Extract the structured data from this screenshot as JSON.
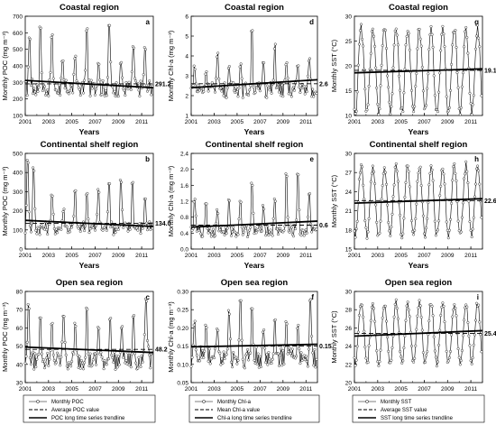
{
  "chart_data": [
    {
      "type": "line",
      "panel": "a",
      "title": "Coastal region",
      "xlabel": "Years",
      "ylabel": "Monthly POC (mg m⁻³)",
      "xlim": [
        2001,
        2012
      ],
      "ylim": [
        100,
        700
      ],
      "xticks": [
        "2001",
        "2003",
        "2005",
        "2007",
        "2009",
        "2011"
      ],
      "yticks": [
        "100",
        "200",
        "300",
        "400",
        "500",
        "600",
        "700"
      ],
      "mean_value": 291.2,
      "mean_label": "291.2",
      "trend_start": 312,
      "trend_end": 268,
      "peaks": [
        2001.4,
        2002.3,
        2003.3,
        2004.2,
        2005.3,
        2006.3,
        2007.3,
        2008.2,
        2009.2,
        2010.3,
        2011.3
      ],
      "peak_values": [
        580,
        640,
        600,
        455,
        460,
        630,
        415,
        665,
        430,
        530,
        525
      ],
      "baseline": 265,
      "amplitude_low": 50
    },
    {
      "type": "line",
      "panel": "b",
      "title": "Continental shelf region",
      "xlabel": "Years",
      "ylabel": "Monthly POC (mg m⁻³)",
      "xlim": [
        2001,
        2012
      ],
      "ylim": [
        0,
        500
      ],
      "xticks": [
        "2001",
        "2003",
        "2005",
        "2007",
        "2009",
        "2011"
      ],
      "yticks": [
        "0",
        "100",
        "200",
        "300",
        "400",
        "500"
      ],
      "mean_value": 134.0,
      "mean_label": "134.0",
      "trend_start": 150,
      "trend_end": 118,
      "peaks": [
        2001.2,
        2001.7,
        2003.3,
        2004.3,
        2005.3,
        2006.3,
        2007.3,
        2008.2,
        2009.2,
        2010.2,
        2011.3
      ],
      "peak_values": [
        470,
        430,
        300,
        210,
        320,
        305,
        320,
        345,
        365,
        360,
        270
      ],
      "baseline": 110,
      "amplitude_low": 35
    },
    {
      "type": "line",
      "panel": "c",
      "title": "Open sea region",
      "xlabel": "Years",
      "ylabel": "Monthly POC (mg m⁻³)",
      "xlim": [
        2001,
        2012
      ],
      "ylim": [
        30,
        80
      ],
      "xticks": [
        "2001",
        "2003",
        "2005",
        "2007",
        "2009",
        "2011"
      ],
      "yticks": [
        "30",
        "40",
        "50",
        "60",
        "70",
        "80"
      ],
      "mean_value": 48.2,
      "mean_label": "48.2",
      "trend_start": 49.5,
      "trend_end": 46.5,
      "peaks": [
        2001.3,
        2002.3,
        2003.3,
        2004.3,
        2005.3,
        2006.3,
        2007.3,
        2008.3,
        2009.3,
        2010.3,
        2011.4
      ],
      "peak_values": [
        73,
        66,
        64,
        67,
        63,
        71,
        61,
        66,
        62,
        68,
        76
      ],
      "baseline": 42,
      "amplitude_low": 5
    },
    {
      "type": "line",
      "panel": "d",
      "title": "Coastal region",
      "xlabel": "Years",
      "ylabel": "Monthly Chl-a (mg m⁻³)",
      "xlim": [
        2001,
        2012
      ],
      "ylim": [
        1,
        6
      ],
      "xticks": [
        "2001",
        "2003",
        "2005",
        "2007",
        "2009",
        "2011"
      ],
      "yticks": [
        "1",
        "2",
        "3",
        "4",
        "5",
        "6"
      ],
      "mean_value": 2.6,
      "mean_label": "2.6",
      "trend_start": 2.4,
      "trend_end": 2.8,
      "peaks": [
        2001.3,
        2002.3,
        2003.3,
        2004.3,
        2005.3,
        2006.3,
        2007.3,
        2008.3,
        2009.3,
        2010.3,
        2011.3
      ],
      "peak_values": [
        3.5,
        3.3,
        4.2,
        3.6,
        3.6,
        5.3,
        3.7,
        4.6,
        3.8,
        3.6,
        3.9
      ],
      "baseline": 2.3,
      "amplitude_low": 0.4
    },
    {
      "type": "line",
      "panel": "e",
      "title": "Continental shelf region",
      "xlabel": "Years",
      "ylabel": "Monthly Chl-a (mg m⁻³)",
      "xlim": [
        2001,
        2012
      ],
      "ylim": [
        0.0,
        2.4
      ],
      "xticks": [
        "2001",
        "2003",
        "2005",
        "2007",
        "2009",
        "2011"
      ],
      "yticks": [
        "0.0",
        "0.4",
        "0.8",
        "1.2",
        "1.6",
        "2.0",
        "2.4"
      ],
      "mean_value": 0.6,
      "mean_label": "0.6",
      "trend_start": 0.55,
      "trend_end": 0.7,
      "peaks": [
        2001.3,
        2002.3,
        2003.3,
        2004.3,
        2005.3,
        2006.3,
        2007.3,
        2008.3,
        2009.3,
        2010.3,
        2011.3
      ],
      "peak_values": [
        1.3,
        1.2,
        1.0,
        1.3,
        1.2,
        1.7,
        1.1,
        1.3,
        1.9,
        1.9,
        1.4
      ],
      "baseline": 0.45,
      "amplitude_low": 0.15
    },
    {
      "type": "line",
      "panel": "f",
      "title": "Open sea region",
      "xlabel": "Years",
      "ylabel": "Monthly Chl-a (mg m⁻³)",
      "xlim": [
        2001,
        2012
      ],
      "ylim": [
        0.05,
        0.3
      ],
      "xticks": [
        "2001",
        "2003",
        "2005",
        "2007",
        "2009",
        "2011"
      ],
      "yticks": [
        "0.05",
        "0.10",
        "0.15",
        "0.20",
        "0.25",
        "0.30"
      ],
      "mean_value": 0.15,
      "mean_label": "0.15",
      "trend_start": 0.148,
      "trend_end": 0.155,
      "peaks": [
        2001.3,
        2002.3,
        2003.3,
        2004.3,
        2005.3,
        2006.3,
        2007.3,
        2008.3,
        2009.3,
        2010.3,
        2011.4
      ],
      "peak_values": [
        0.22,
        0.21,
        0.2,
        0.25,
        0.28,
        0.26,
        0.2,
        0.23,
        0.22,
        0.21,
        0.28
      ],
      "baseline": 0.12,
      "amplitude_low": 0.03
    },
    {
      "type": "line",
      "panel": "g",
      "title": "Coastal region",
      "xlabel": "Years",
      "ylabel": "Monthly SST (°C)",
      "xlim": [
        2001,
        2012
      ],
      "ylim": [
        10,
        30
      ],
      "xticks": [
        "2001",
        "2003",
        "2005",
        "2007",
        "2009",
        "2011"
      ],
      "yticks": [
        "10",
        "15",
        "20",
        "25",
        "30"
      ],
      "mean_value": 19.1,
      "mean_label": "19.1",
      "trend_start": 18.6,
      "trend_end": 19.4,
      "seasonal": true,
      "sst_mean": 19.1,
      "sst_amp": 8.5
    },
    {
      "type": "line",
      "panel": "h",
      "title": "Continental shelf region",
      "xlabel": "Years",
      "ylabel": "Monthly SST (°C)",
      "xlim": [
        2001,
        2012
      ],
      "ylim": [
        15,
        30
      ],
      "xticks": [
        "2001",
        "2003",
        "2005",
        "2007",
        "2009",
        "2011"
      ],
      "yticks": [
        "15",
        "18",
        "21",
        "24",
        "27",
        "30"
      ],
      "mean_value": 22.6,
      "mean_label": "22.6",
      "trend_start": 22.2,
      "trend_end": 22.9,
      "seasonal": true,
      "sst_mean": 22.6,
      "sst_amp": 5.5
    },
    {
      "type": "line",
      "panel": "i",
      "title": "Open sea region",
      "xlabel": "Years",
      "ylabel": "Monthly SST (°C)",
      "xlim": [
        2001,
        2012
      ],
      "ylim": [
        20,
        30
      ],
      "xticks": [
        "2001",
        "2003",
        "2005",
        "2007",
        "2009",
        "2011"
      ],
      "yticks": [
        "20",
        "22",
        "24",
        "26",
        "28",
        "30"
      ],
      "mean_value": 25.4,
      "mean_label": "25.4",
      "trend_start": 25.1,
      "trend_end": 25.7,
      "seasonal": true,
      "sst_mean": 25.4,
      "sst_amp": 3.3
    }
  ],
  "legends": [
    {
      "entries": [
        "Monthly POC",
        "Average POC value",
        "POC long time series trendline"
      ]
    },
    {
      "entries": [
        "Monthly Chl-a",
        "Mean Chl-a value",
        "Chl-a long time series trendline"
      ]
    },
    {
      "entries": [
        "Monthly SST",
        "Average SST value",
        "SST long time series trendline"
      ]
    }
  ]
}
